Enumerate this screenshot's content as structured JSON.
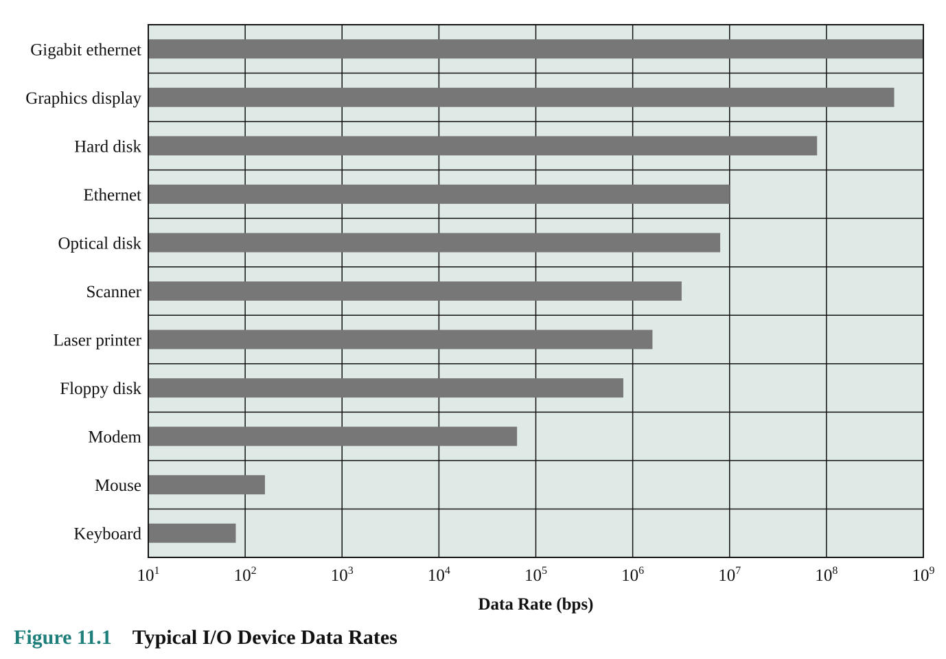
{
  "chart_data": {
    "type": "bar",
    "orientation": "horizontal",
    "xscale": "log",
    "xlim": [
      10,
      1000000000
    ],
    "xlabel": "Data Rate (bps)",
    "xticks": [
      {
        "base": "10",
        "exp": "1"
      },
      {
        "base": "10",
        "exp": "2"
      },
      {
        "base": "10",
        "exp": "3"
      },
      {
        "base": "10",
        "exp": "4"
      },
      {
        "base": "10",
        "exp": "5"
      },
      {
        "base": "10",
        "exp": "6"
      },
      {
        "base": "10",
        "exp": "7"
      },
      {
        "base": "10",
        "exp": "8"
      },
      {
        "base": "10",
        "exp": "9"
      }
    ],
    "categories": [
      "Gigabit ethernet",
      "Graphics display",
      "Hard disk",
      "Ethernet",
      "Optical disk",
      "Scanner",
      "Laser printer",
      "Floppy disk",
      "Modem",
      "Mouse",
      "Keyboard"
    ],
    "values": [
      1000000000,
      500000000,
      80000000,
      10000000,
      8000000,
      3200000,
      1600000,
      800000,
      64000,
      160,
      80
    ],
    "grid": true,
    "colors": {
      "background": "#dfe9e5",
      "bar": "#777777",
      "grid": "#111111"
    }
  },
  "caption": {
    "number": "Figure 11.1",
    "title": "Typical I/O Device Data Rates"
  }
}
